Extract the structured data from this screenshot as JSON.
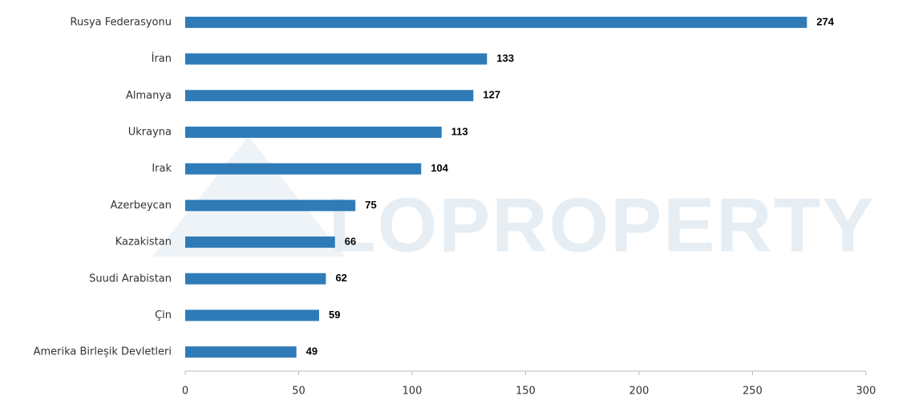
{
  "chart_data": {
    "type": "bar",
    "orientation": "horizontal",
    "watermark": "LOPROPERTY",
    "categories": [
      "Rusya Federasyonu",
      "İran",
      "Almanya",
      "Ukrayna",
      "Irak",
      "Azerbeycan",
      "Kazakistan",
      "Suudi Arabistan",
      "Çin",
      "Amerika Birleşik Devletleri"
    ],
    "values": [
      274,
      133,
      127,
      113,
      104,
      75,
      66,
      62,
      59,
      49
    ],
    "color": "#2e7bb8",
    "xlim": [
      0,
      300
    ],
    "xticks": [
      0,
      50,
      100,
      150,
      200,
      250,
      300
    ],
    "grid": false
  }
}
